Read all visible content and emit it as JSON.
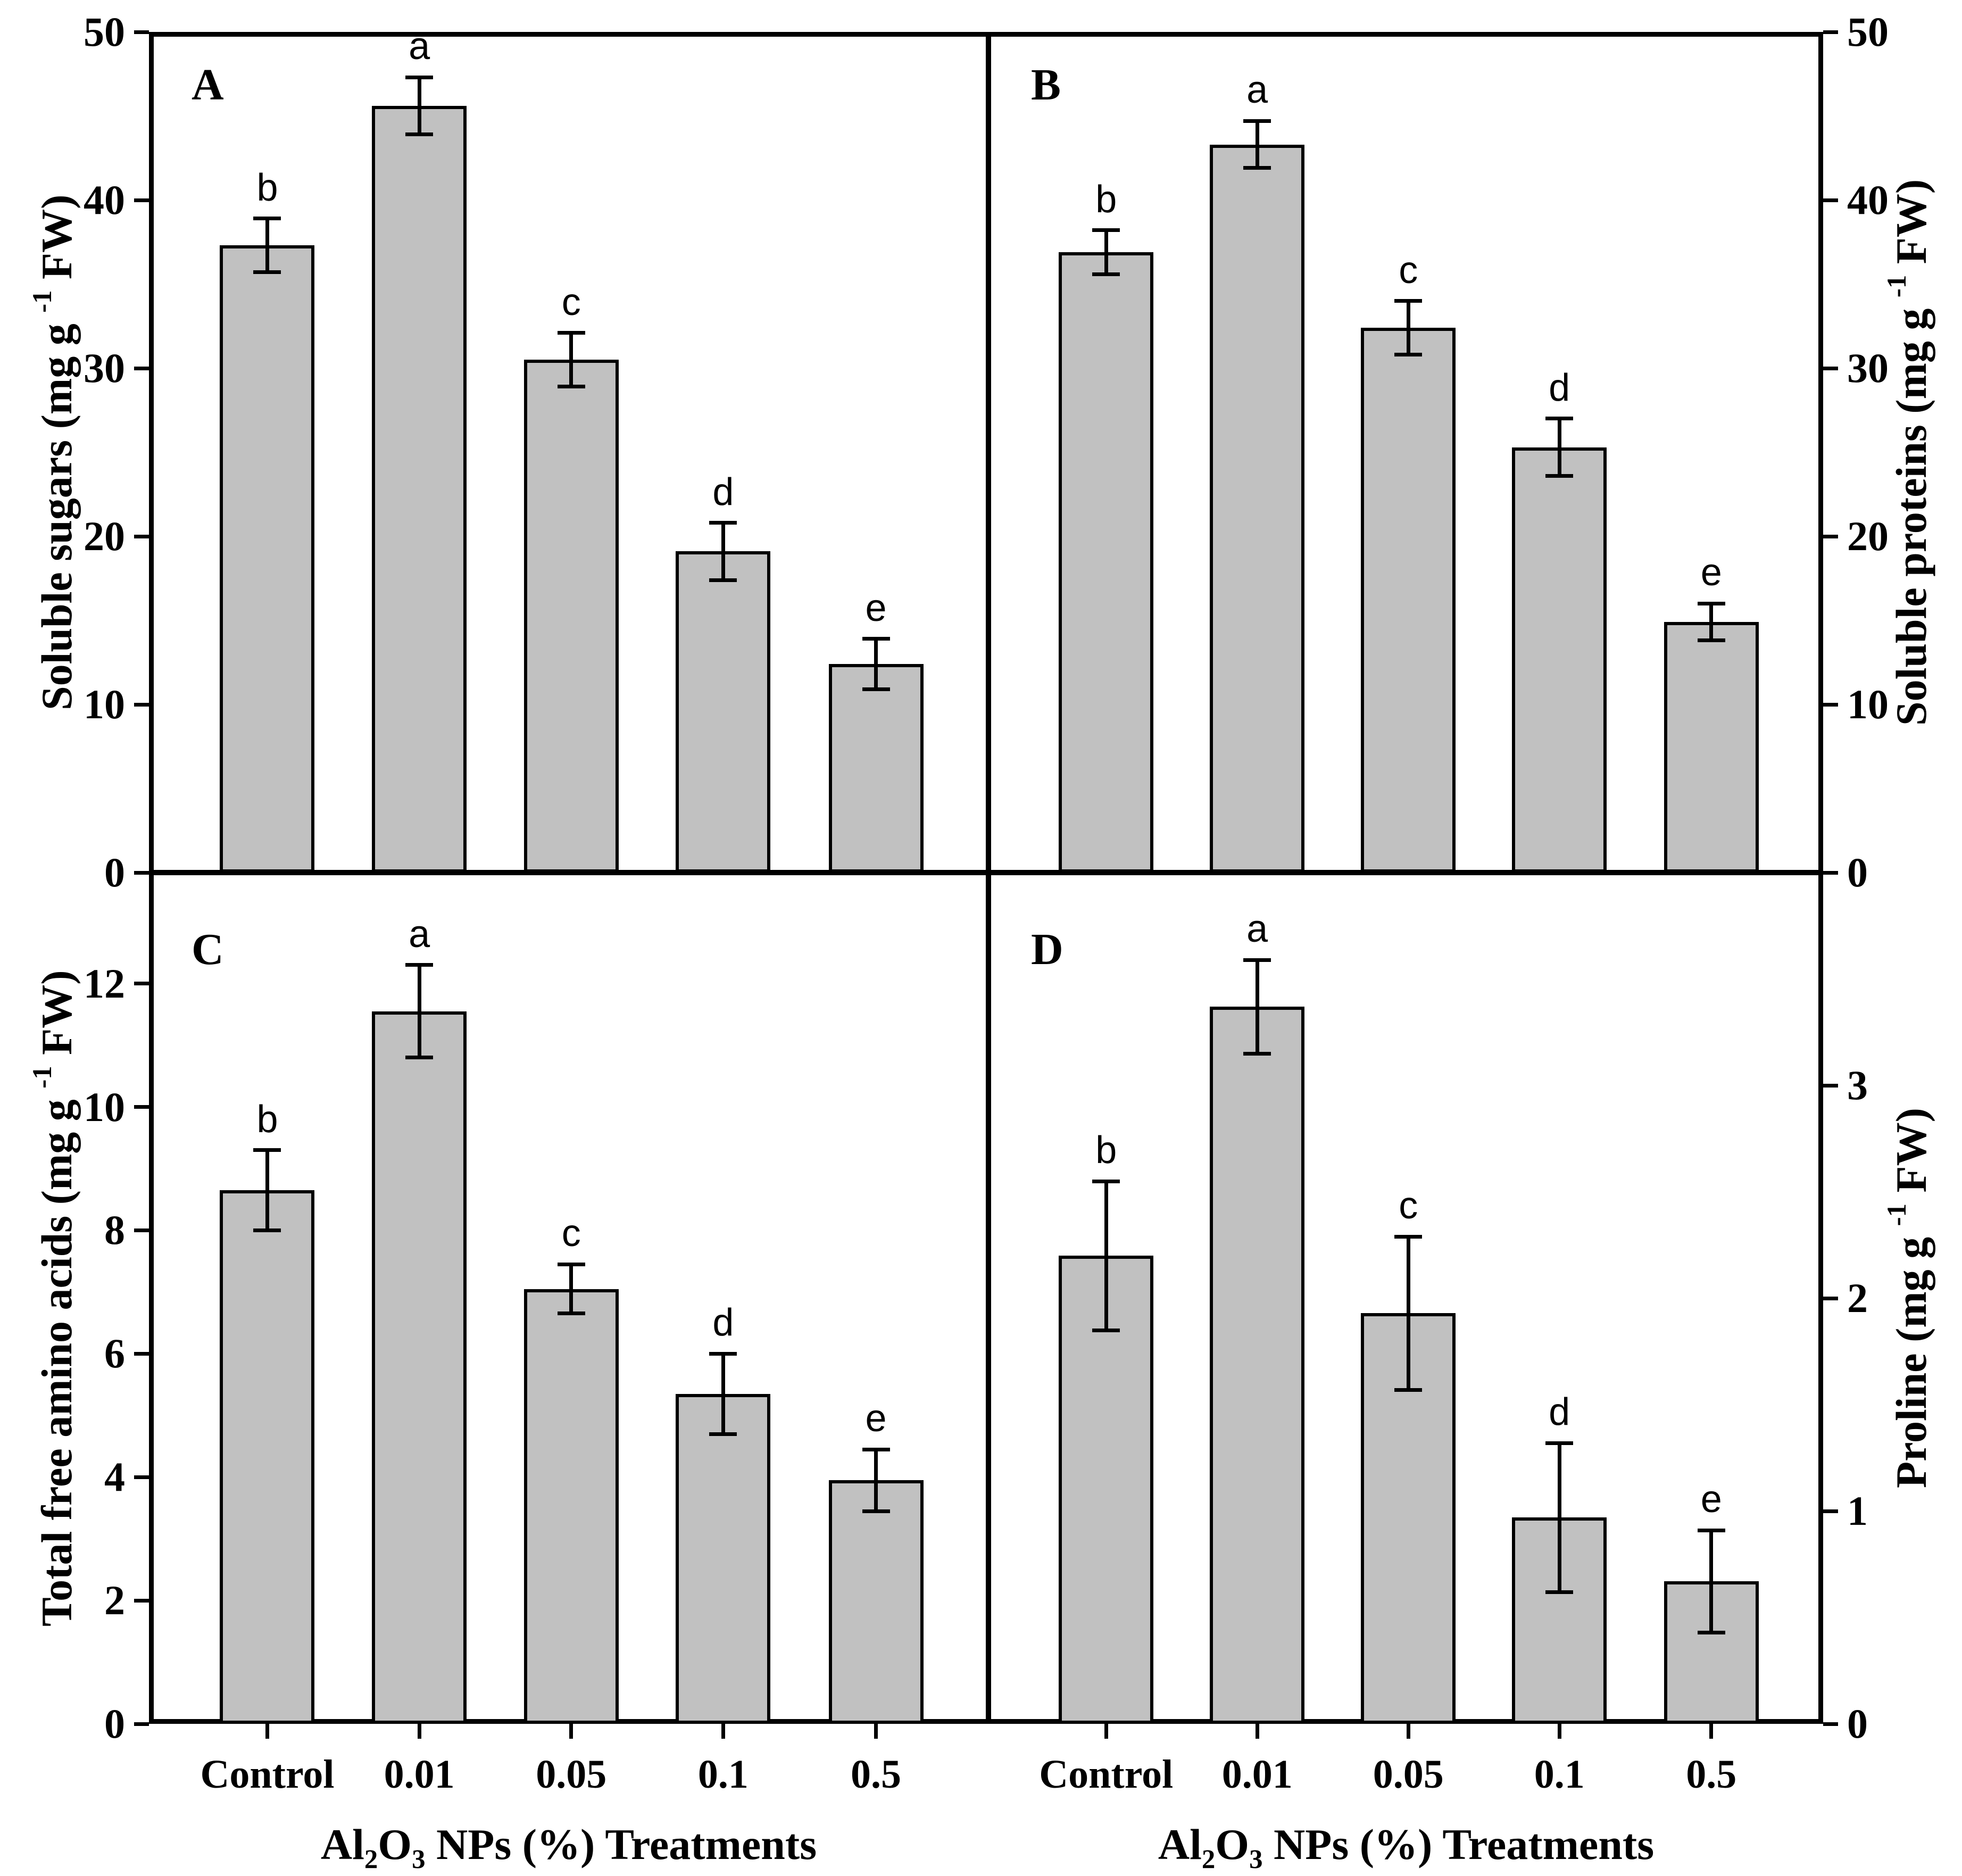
{
  "figure": {
    "background": "#ffffff",
    "bar_fill": "#c1c1c1",
    "bar_border": "#000000",
    "text_color": "#000000"
  },
  "treatments": [
    "Control",
    "0.01",
    "0.05",
    "0.1",
    "0.5"
  ],
  "x_title_parts": {
    "el1": "Al",
    "sub1": "2",
    "el2": "O",
    "sub2": "3",
    "rest": " NPs (%) Treatments"
  },
  "chart_data": [
    {
      "type": "bar",
      "panel_letter": "A",
      "position": "top-left",
      "axis_side": "left",
      "ylabel_parts": [
        "Soluble sugars (mg g ",
        "-1",
        " FW)"
      ],
      "ylim": [
        0,
        50
      ],
      "yticks": [
        0,
        10,
        20,
        30,
        40,
        50
      ],
      "categories": [
        "Control",
        "0.01",
        "0.05",
        "0.1",
        "0.5"
      ],
      "values": [
        37.3,
        45.6,
        30.5,
        19.1,
        12.4
      ],
      "errors": [
        1.6,
        1.7,
        1.6,
        1.7,
        1.5
      ],
      "sig_letters": [
        "b",
        "a",
        "c",
        "d",
        "e"
      ],
      "show_x_labels": false
    },
    {
      "type": "bar",
      "panel_letter": "B",
      "position": "top-right",
      "axis_side": "right",
      "ylabel_parts": [
        "Soluble proteins (mg g ",
        "-1",
        " FW)"
      ],
      "ylim": [
        0,
        50
      ],
      "yticks": [
        0,
        10,
        20,
        30,
        40,
        50
      ],
      "categories": [
        "Control",
        "0.01",
        "0.05",
        "0.1",
        "0.5"
      ],
      "values": [
        36.9,
        43.3,
        32.4,
        25.3,
        14.9
      ],
      "errors": [
        1.3,
        1.4,
        1.6,
        1.7,
        1.1
      ],
      "sig_letters": [
        "b",
        "a",
        "c",
        "d",
        "e"
      ],
      "show_x_labels": false
    },
    {
      "type": "bar",
      "panel_letter": "C",
      "position": "bottom-left",
      "axis_side": "left",
      "ylabel_parts": [
        "Total free amino acids (mg g ",
        "-1",
        " FW)"
      ],
      "ylim": [
        0,
        13.8
      ],
      "yticks": [
        0,
        2,
        4,
        6,
        8,
        10,
        12
      ],
      "categories": [
        "Control",
        "0.01",
        "0.05",
        "0.1",
        "0.5"
      ],
      "values": [
        8.65,
        11.55,
        7.05,
        5.35,
        3.95
      ],
      "errors": [
        0.65,
        0.75,
        0.4,
        0.65,
        0.5
      ],
      "sig_letters": [
        "b",
        "a",
        "c",
        "d",
        "e"
      ],
      "show_x_labels": true
    },
    {
      "type": "bar",
      "panel_letter": "D",
      "position": "bottom-right",
      "axis_side": "right",
      "ylabel_parts": [
        "Proline (mg g ",
        "-1",
        " FW)"
      ],
      "ylim": [
        0,
        4
      ],
      "yticks": [
        0,
        1,
        2,
        3
      ],
      "categories": [
        "Control",
        "0.01",
        "0.05",
        "0.1",
        "0.5"
      ],
      "values": [
        2.2,
        3.37,
        1.93,
        0.97,
        0.67
      ],
      "errors": [
        0.35,
        0.22,
        0.36,
        0.35,
        0.24
      ],
      "sig_letters": [
        "b",
        "a",
        "c",
        "d",
        "e"
      ],
      "show_x_labels": true
    }
  ]
}
